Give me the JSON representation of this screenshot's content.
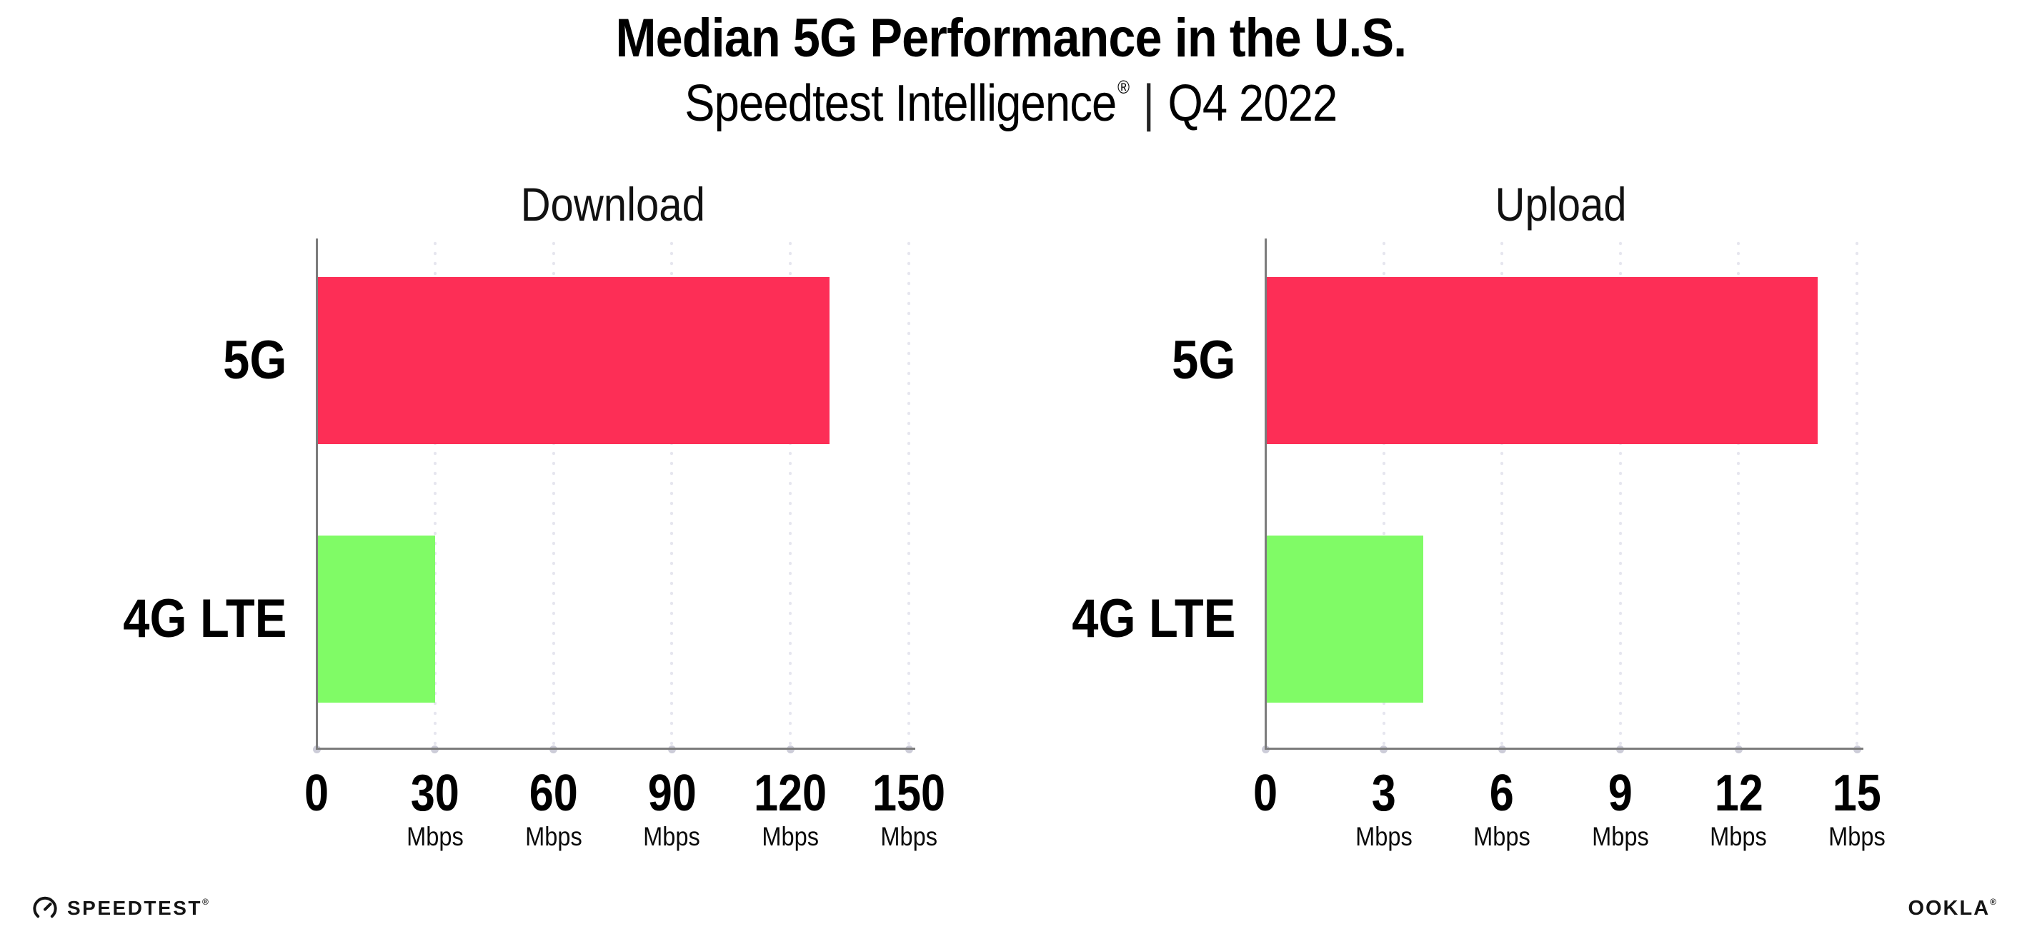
{
  "page": {
    "title": "Median 5G Performance in the U.S.",
    "subtitle": {
      "brand": "Speedtest Intelligence",
      "registered": "®",
      "separator": "|",
      "period": "Q4 2022"
    }
  },
  "colors": {
    "bar_5g": "#FD2E56",
    "bar_4g_lte": "#80FB66",
    "axis": "#7C7C7C",
    "gridline": "#E6E6EF",
    "axis_dot": "#CCCCD8",
    "text": "#000000"
  },
  "chart_data": [
    {
      "type": "bar",
      "orientation": "horizontal",
      "title": "Download",
      "categories": [
        "5G",
        "4G LTE"
      ],
      "values": [
        130,
        30
      ],
      "unit": "Mbps",
      "xlim": [
        0,
        150
      ],
      "xticks": [
        0,
        30,
        60,
        90,
        120,
        150
      ],
      "tick_unit": "Mbps",
      "grid": true,
      "legend": "none",
      "bar_colors": [
        "#FD2E56",
        "#80FB66"
      ]
    },
    {
      "type": "bar",
      "orientation": "horizontal",
      "title": "Upload",
      "categories": [
        "5G",
        "4G LTE"
      ],
      "values": [
        14,
        4
      ],
      "unit": "Mbps",
      "xlim": [
        0,
        15
      ],
      "xticks": [
        0,
        3,
        6,
        9,
        12,
        15
      ],
      "tick_unit": "Mbps",
      "grid": true,
      "legend": "none",
      "bar_colors": [
        "#FD2E56",
        "#80FB66"
      ]
    }
  ],
  "footer": {
    "speedtest_label": "SPEEDTEST",
    "speedtest_mark": "®",
    "ookla_label": "OOKLA",
    "ookla_mark": "®"
  }
}
